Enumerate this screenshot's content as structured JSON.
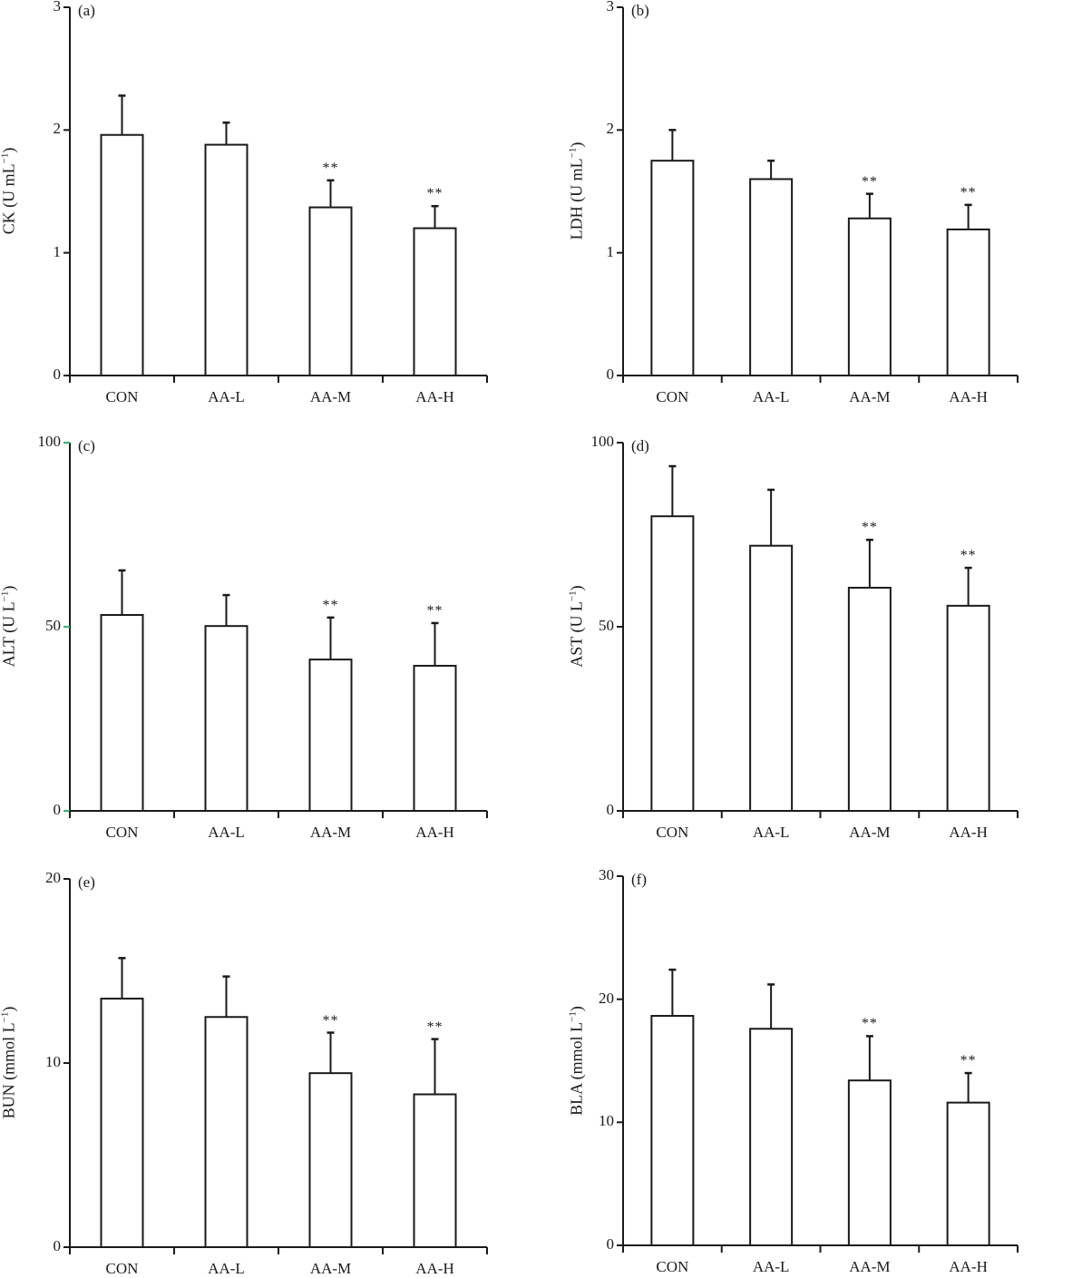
{
  "figure": {
    "panels": [
      {
        "tag": "(a)",
        "ylabel_main": "CK (U mL",
        "ylabel_sup": "−1",
        "ylabel_close": ")",
        "yticks": [
          "0",
          "1",
          "2",
          "3"
        ],
        "tick_color": "#1a1a1a"
      },
      {
        "tag": "(b)",
        "ylabel_main": "LDH (U mL",
        "ylabel_sup": "−1",
        "ylabel_close": ")",
        "yticks": [
          "0",
          "1",
          "2",
          "3"
        ],
        "tick_color": "#1a1a1a"
      },
      {
        "tag": "(c)",
        "ylabel_main": "ALT (U L",
        "ylabel_sup": "−1",
        "ylabel_close": ")",
        "yticks": [
          "0",
          "50",
          "100"
        ],
        "tick_color": "#2bb673"
      },
      {
        "tag": "(d)",
        "ylabel_main": "AST (U L",
        "ylabel_sup": "−1",
        "ylabel_close": ")",
        "yticks": [
          "0",
          "50",
          "100"
        ],
        "tick_color": "#1a1a1a"
      },
      {
        "tag": "(e)",
        "ylabel_main": "BUN (mmol L",
        "ylabel_sup": "−1",
        "ylabel_close": ")",
        "yticks": [
          "0",
          "10",
          "20"
        ],
        "tick_color": "#1a1a1a"
      },
      {
        "tag": "(f)",
        "ylabel_main": "BLA (mmol L",
        "ylabel_sup": "−1",
        "ylabel_close": ")",
        "yticks": [
          "0",
          "10",
          "20",
          "30"
        ],
        "tick_color": "#1a1a1a"
      }
    ],
    "categories": [
      "CON",
      "AA-L",
      "AA-M",
      "AA-H"
    ],
    "significance_marker": "**"
  },
  "chart_data": [
    {
      "type": "bar",
      "title": "(a)",
      "xlabel": "",
      "ylabel": "CK (U mL−1)",
      "categories": [
        "CON",
        "AA-L",
        "AA-M",
        "AA-H"
      ],
      "values": [
        1.96,
        1.88,
        1.37,
        1.2
      ],
      "error": [
        0.32,
        0.18,
        0.22,
        0.18
      ],
      "significance": [
        "",
        "",
        "**",
        "**"
      ],
      "ylim": [
        0,
        3
      ],
      "yticks": [
        0,
        1,
        2,
        3
      ],
      "grid": false,
      "legend": null
    },
    {
      "type": "bar",
      "title": "(b)",
      "xlabel": "",
      "ylabel": "LDH (U mL−1)",
      "categories": [
        "CON",
        "AA-L",
        "AA-M",
        "AA-H"
      ],
      "values": [
        1.75,
        1.6,
        1.28,
        1.19
      ],
      "error": [
        0.25,
        0.15,
        0.2,
        0.2
      ],
      "significance": [
        "",
        "",
        "**",
        "**"
      ],
      "ylim": [
        0,
        3
      ],
      "yticks": [
        0,
        1,
        2,
        3
      ],
      "grid": false,
      "legend": null
    },
    {
      "type": "bar",
      "title": "(c)",
      "xlabel": "",
      "ylabel": "ALT (U L−1)",
      "categories": [
        "CON",
        "AA-L",
        "AA-M",
        "AA-H"
      ],
      "values": [
        53.2,
        50.2,
        41.1,
        39.4
      ],
      "error": [
        12.1,
        8.4,
        11.4,
        11.6
      ],
      "significance": [
        "",
        "",
        "**",
        "**"
      ],
      "ylim": [
        0,
        100
      ],
      "yticks": [
        0,
        50,
        100
      ],
      "grid": false,
      "legend": null
    },
    {
      "type": "bar",
      "title": "(d)",
      "xlabel": "",
      "ylabel": "AST (U L−1)",
      "categories": [
        "CON",
        "AA-L",
        "AA-M",
        "AA-H"
      ],
      "values": [
        80.0,
        72.0,
        60.6,
        55.7
      ],
      "error": [
        13.6,
        15.2,
        13.0,
        10.3
      ],
      "significance": [
        "",
        "",
        "**",
        "**"
      ],
      "ylim": [
        0,
        100
      ],
      "yticks": [
        0,
        50,
        100
      ],
      "grid": false,
      "legend": null
    },
    {
      "type": "bar",
      "title": "(e)",
      "xlabel": "",
      "ylabel": "BUN (mmol L−1)",
      "categories": [
        "CON",
        "AA-L",
        "AA-M",
        "AA-H"
      ],
      "values": [
        13.5,
        12.5,
        9.45,
        8.3
      ],
      "error": [
        2.2,
        2.2,
        2.2,
        3.0
      ],
      "significance": [
        "",
        "",
        "**",
        "**"
      ],
      "ylim": [
        0,
        20
      ],
      "yticks": [
        0,
        10,
        20
      ],
      "grid": false,
      "legend": null
    },
    {
      "type": "bar",
      "title": "(f)",
      "xlabel": "",
      "ylabel": "BLA (mmol L−1)",
      "categories": [
        "CON",
        "AA-L",
        "AA-M",
        "AA-H"
      ],
      "values": [
        18.65,
        17.6,
        13.4,
        11.6
      ],
      "error": [
        3.75,
        3.6,
        3.6,
        2.4
      ],
      "significance": [
        "",
        "",
        "**",
        "**"
      ],
      "ylim": [
        0,
        30
      ],
      "yticks": [
        0,
        10,
        20,
        30
      ],
      "grid": false,
      "legend": null
    }
  ]
}
